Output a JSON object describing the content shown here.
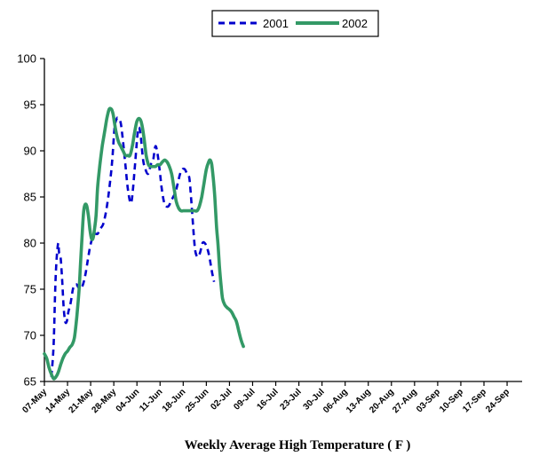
{
  "chart_data": {
    "type": "line",
    "title": "",
    "xlabel": "Weekly Average High Temperature ( F )",
    "ylabel": "",
    "ylim": [
      65,
      100
    ],
    "yticks": [
      65,
      70,
      75,
      80,
      85,
      90,
      95,
      100
    ],
    "grid": false,
    "legend_position": "top-center",
    "categories": [
      "07-May",
      "14-May",
      "21-May",
      "28-May",
      "04-Jun",
      "11-Jun",
      "18-Jun",
      "25-Jun",
      "02-Jul",
      "09-Jul",
      "16-Jul",
      "23-Jul",
      "30-Jul",
      "06-Aug",
      "13-Aug",
      "20-Aug",
      "27-Aug",
      "03-Sep",
      "10-Sep",
      "17-Sep",
      "24-Sep"
    ],
    "series": [
      {
        "name": "2001",
        "style": "dashed",
        "color": "#0000cc",
        "points": [
          [
            0.9,
            65.5
          ],
          [
            1.2,
            69
          ],
          [
            1.4,
            75
          ],
          [
            1.6,
            78.5
          ],
          [
            1.8,
            80
          ],
          [
            1.9,
            79
          ],
          [
            2.1,
            78.5
          ],
          [
            2.3,
            76
          ],
          [
            2.5,
            73
          ],
          [
            2.7,
            71.5
          ],
          [
            2.9,
            71.5
          ],
          [
            3.1,
            72.5
          ],
          [
            3.4,
            73.5
          ],
          [
            3.7,
            75
          ],
          [
            4.0,
            75.5
          ],
          [
            4.2,
            75.5
          ],
          [
            4.4,
            75.2
          ],
          [
            4.7,
            75
          ],
          [
            5.0,
            75.5
          ],
          [
            5.3,
            76.5
          ],
          [
            5.6,
            78
          ],
          [
            5.9,
            79.5
          ],
          [
            6.2,
            80.5
          ],
          [
            6.5,
            81
          ],
          [
            6.9,
            81
          ],
          [
            7.2,
            81.5
          ],
          [
            7.6,
            82
          ],
          [
            7.9,
            83
          ],
          [
            8.2,
            84.5
          ],
          [
            8.5,
            86.5
          ],
          [
            8.8,
            89
          ],
          [
            9.1,
            92.5
          ],
          [
            9.4,
            93.5
          ],
          [
            9.6,
            93.5
          ],
          [
            9.9,
            93
          ],
          [
            10.2,
            91
          ],
          [
            10.5,
            88.5
          ],
          [
            10.8,
            86
          ],
          [
            11.1,
            84.5
          ],
          [
            11.3,
            84.5
          ],
          [
            11.5,
            86
          ],
          [
            11.8,
            89
          ],
          [
            12.1,
            92
          ],
          [
            12.3,
            92.5
          ],
          [
            12.5,
            91.5
          ],
          [
            12.8,
            89
          ],
          [
            13.1,
            88
          ],
          [
            13.4,
            87.5
          ],
          [
            13.6,
            87.8
          ],
          [
            13.8,
            88.5
          ],
          [
            14.1,
            89
          ],
          [
            14.4,
            90.5
          ],
          [
            14.7,
            89.5
          ],
          [
            15.0,
            87.5
          ],
          [
            15.2,
            86
          ],
          [
            15.5,
            84.5
          ],
          [
            15.8,
            84
          ],
          [
            16.1,
            84
          ],
          [
            16.4,
            84.5
          ],
          [
            16.7,
            85
          ],
          [
            17.0,
            85.5
          ],
          [
            17.3,
            86.5
          ],
          [
            17.6,
            87.5
          ],
          [
            17.9,
            88
          ],
          [
            18.2,
            88
          ],
          [
            18.5,
            87.5
          ],
          [
            18.8,
            87
          ],
          [
            19.1,
            84
          ],
          [
            19.4,
            80.5
          ],
          [
            19.6,
            79
          ],
          [
            19.9,
            78.5
          ],
          [
            20.2,
            79
          ],
          [
            20.5,
            80
          ],
          [
            20.8,
            80
          ],
          [
            21.1,
            79.5
          ],
          [
            21.4,
            78.5
          ],
          [
            21.7,
            77
          ],
          [
            22.0,
            75.8
          ]
        ]
      },
      {
        "name": "2002",
        "style": "solid",
        "color": "#339966",
        "points": [
          [
            0,
            68
          ],
          [
            0.3,
            67.5
          ],
          [
            0.6,
            66.5
          ],
          [
            0.9,
            65.8
          ],
          [
            1.2,
            65.3
          ],
          [
            1.5,
            65.5
          ],
          [
            1.8,
            66
          ],
          [
            2.1,
            66.8
          ],
          [
            2.4,
            67.5
          ],
          [
            2.7,
            68
          ],
          [
            3.0,
            68.3
          ],
          [
            3.3,
            68.7
          ],
          [
            3.6,
            69
          ],
          [
            3.9,
            69.8
          ],
          [
            4.2,
            72
          ],
          [
            4.5,
            75
          ],
          [
            4.7,
            78
          ],
          [
            4.9,
            81
          ],
          [
            5.1,
            83.5
          ],
          [
            5.3,
            84.2
          ],
          [
            5.5,
            84
          ],
          [
            5.7,
            83
          ],
          [
            5.9,
            81.5
          ],
          [
            6.1,
            80.5
          ],
          [
            6.3,
            80.5
          ],
          [
            6.5,
            81.5
          ],
          [
            6.7,
            83
          ],
          [
            6.9,
            86
          ],
          [
            7.2,
            88.5
          ],
          [
            7.5,
            90.5
          ],
          [
            7.8,
            92
          ],
          [
            8.1,
            93.5
          ],
          [
            8.4,
            94.5
          ],
          [
            8.7,
            94.5
          ],
          [
            8.9,
            94
          ],
          [
            9.1,
            93
          ],
          [
            9.3,
            92
          ],
          [
            9.6,
            91
          ],
          [
            9.9,
            90.5
          ],
          [
            10.2,
            90
          ],
          [
            10.5,
            89.5
          ],
          [
            10.8,
            89.5
          ],
          [
            11.1,
            89.5
          ],
          [
            11.4,
            90.5
          ],
          [
            11.7,
            92
          ],
          [
            12.0,
            93.2
          ],
          [
            12.3,
            93.5
          ],
          [
            12.6,
            93
          ],
          [
            12.9,
            91.5
          ],
          [
            13.2,
            89.5
          ],
          [
            13.5,
            88.5
          ],
          [
            13.8,
            88.3
          ],
          [
            14.1,
            88.3
          ],
          [
            14.4,
            88.3
          ],
          [
            14.7,
            88.5
          ],
          [
            15.0,
            88.5
          ],
          [
            15.3,
            88.8
          ],
          [
            15.6,
            89
          ],
          [
            15.9,
            88.8
          ],
          [
            16.2,
            88.3
          ],
          [
            16.5,
            87.5
          ],
          [
            16.8,
            86
          ],
          [
            17.1,
            84.5
          ],
          [
            17.4,
            83.8
          ],
          [
            17.7,
            83.5
          ],
          [
            18.0,
            83.5
          ],
          [
            18.3,
            83.5
          ],
          [
            18.6,
            83.5
          ],
          [
            18.9,
            83.5
          ],
          [
            19.2,
            83.5
          ],
          [
            19.5,
            83.5
          ],
          [
            19.8,
            83.5
          ],
          [
            20.1,
            84
          ],
          [
            20.4,
            85
          ],
          [
            20.7,
            86.5
          ],
          [
            21.0,
            88
          ],
          [
            21.3,
            88.8
          ],
          [
            21.5,
            89
          ],
          [
            21.7,
            88.5
          ],
          [
            21.9,
            87
          ],
          [
            22.1,
            85
          ],
          [
            22.3,
            82
          ],
          [
            22.5,
            80
          ],
          [
            22.7,
            77.5
          ],
          [
            22.9,
            75.5
          ],
          [
            23.1,
            74
          ],
          [
            23.4,
            73.3
          ],
          [
            23.7,
            73
          ],
          [
            24.0,
            72.8
          ],
          [
            24.3,
            72.5
          ],
          [
            24.6,
            72
          ],
          [
            24.9,
            71.5
          ],
          [
            25.2,
            70.5
          ],
          [
            25.5,
            69.5
          ],
          [
            25.8,
            68.8
          ]
        ]
      }
    ]
  }
}
